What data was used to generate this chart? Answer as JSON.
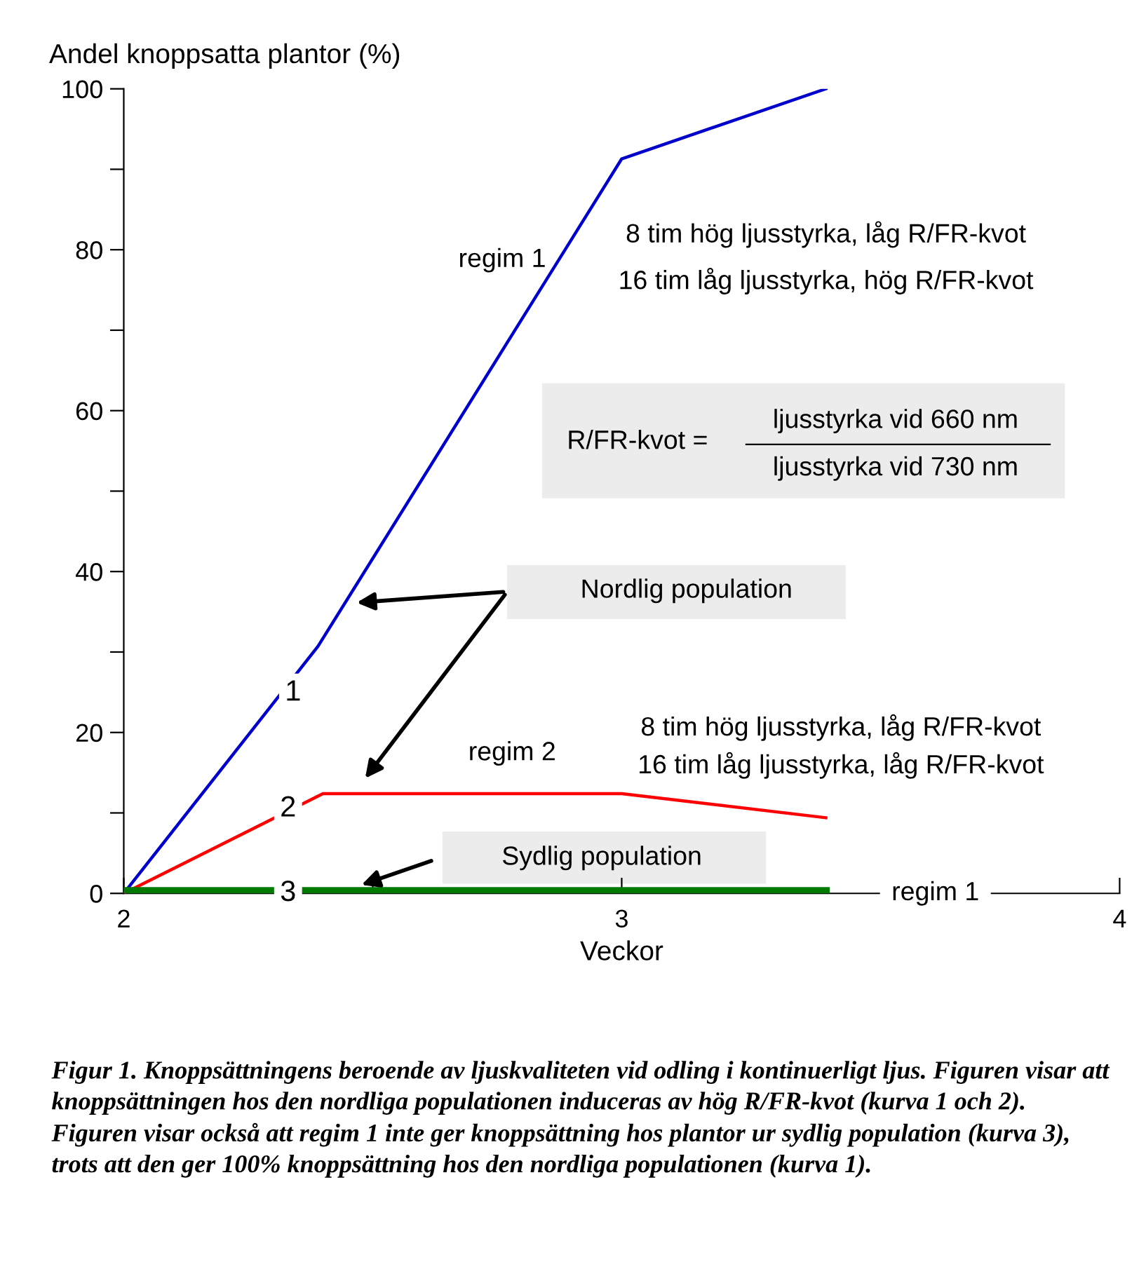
{
  "chart_data": {
    "type": "line",
    "ylabel": "Andel knoppsatta plantor (%)",
    "xlabel": "Veckor",
    "xlim": [
      2,
      4
    ],
    "xticks": [
      2,
      {
        "value": 2.5,
        "label": null
      },
      3,
      4
    ],
    "ylim": [
      0,
      100
    ],
    "yticks": [
      0,
      {
        "value": 10,
        "label": null
      },
      20,
      {
        "value": 30,
        "label": null
      },
      40,
      {
        "value": 50,
        "label": null
      },
      60,
      {
        "value": 70,
        "label": null
      },
      80,
      {
        "value": 90,
        "label": null
      },
      100
    ],
    "grid": false,
    "legend": false,
    "marker": "none",
    "line_style": "solid",
    "series": [
      {
        "name": "1",
        "color": "#0000cc",
        "x": [
          2,
          2.39,
          3,
          3.41
        ],
        "values": [
          0,
          30.7,
          91.3,
          100
        ]
      },
      {
        "name": "2",
        "color": "#ff0000",
        "x": [
          2,
          2.4,
          3,
          3.41
        ],
        "values": [
          0,
          12.4,
          12.4,
          9.4
        ]
      },
      {
        "name": "3",
        "color": "#007a00",
        "x": [
          2,
          3.41
        ],
        "values": [
          0.3,
          0.3
        ]
      }
    ],
    "annotations": [
      "regim 1",
      "8 tim hög ljusstyrka, låg R/FR-kvot",
      "16 tim låg ljusstyrka, hög R/FR-kvot",
      "R/FR-kvot =",
      "ljusstyrka vid 660 nm",
      "ljusstyrka vid 730 nm",
      "Nordlig population",
      "regim 2",
      "8 tim hög ljusstyrka, låg R/FR-kvot",
      "16 tim låg ljusstyrka, låg R/FR-kvot",
      "Sydlig population",
      "regim 1",
      "Figur 1. Knoppsättningens beroende av ljuskvaliteten vid odling i kontinuerligt ljus. Figuren visar att  knoppsättningen hos den nordliga populationen induceras av hög R/FR-kvot (kurva 1 och 2). Figuren visar också att regim 1 inte ger knoppsättning hos plantor ur sydlig population (kurva 3), trots att den ger 100% knoppsättning hos den nordliga populationen (kurva 1)."
    ]
  }
}
